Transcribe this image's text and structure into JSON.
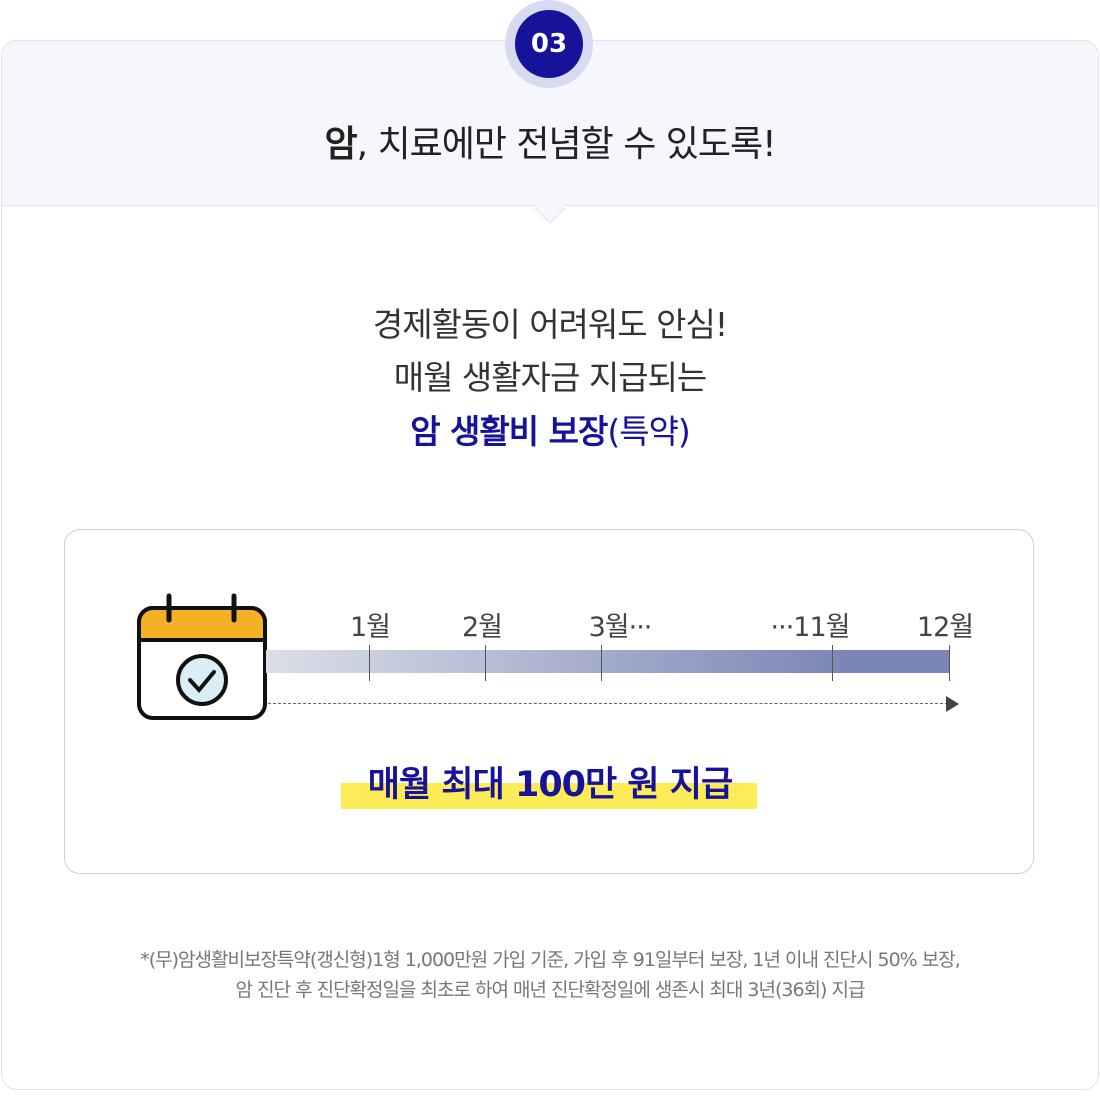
{
  "step": {
    "number": "03"
  },
  "header": {
    "title_bold": "암",
    "title_rest": ", 치료에만 전념할 수 있도록!"
  },
  "lead": {
    "line1": "경제활동이 어려워도 안심!",
    "line2": "매월 생활자금 지급되는",
    "line3_bold": "암 생활비 보장",
    "line3_rest": "(특약)"
  },
  "timeline": {
    "labels": [
      "1월",
      "2월",
      "3월···",
      "···11월",
      "12월"
    ],
    "icon": "calendar-check-icon"
  },
  "payout": "매월 최대 100만 원 지급",
  "footnote": {
    "line1": "*(무)암생활비보장특약(갱신형)1형 1,000만원 가입 기준, 가입 후 91일부터 보장, 1년 이내 진단시 50% 보장,",
    "line2": "암 진단 후 진단확정일을 최초로 하여 매년 진단확정일에 생존시 최대 3년(36회) 지급"
  },
  "colors": {
    "accent": "#16129a",
    "highlight": "#fdec58",
    "calendar": "#f4b126"
  }
}
